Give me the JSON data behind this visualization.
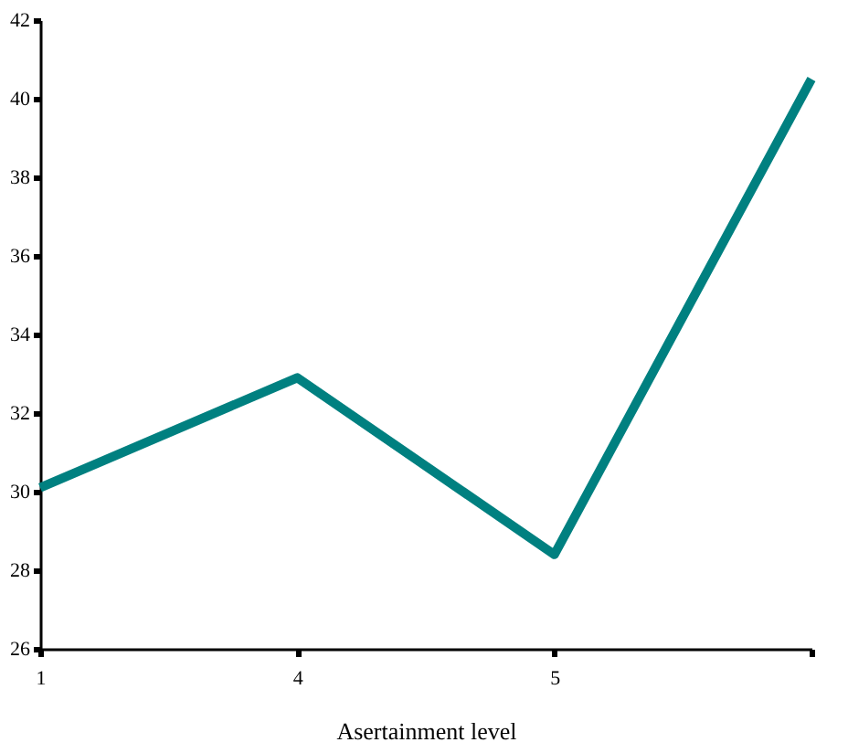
{
  "chart_data": {
    "type": "line",
    "xlabel": "Asertainment level",
    "categories": [
      "1",
      "4",
      "5",
      null
    ],
    "series": [
      {
        "color": "#008080",
        "values": [
          30.1,
          32.9,
          28.4,
          40.5
        ]
      }
    ],
    "ylim": [
      26,
      42
    ],
    "yticks": [
      26,
      28,
      30,
      32,
      34,
      36,
      38,
      40,
      42
    ],
    "grid": false,
    "legend": false,
    "marker": "none",
    "line_style": "solid"
  }
}
